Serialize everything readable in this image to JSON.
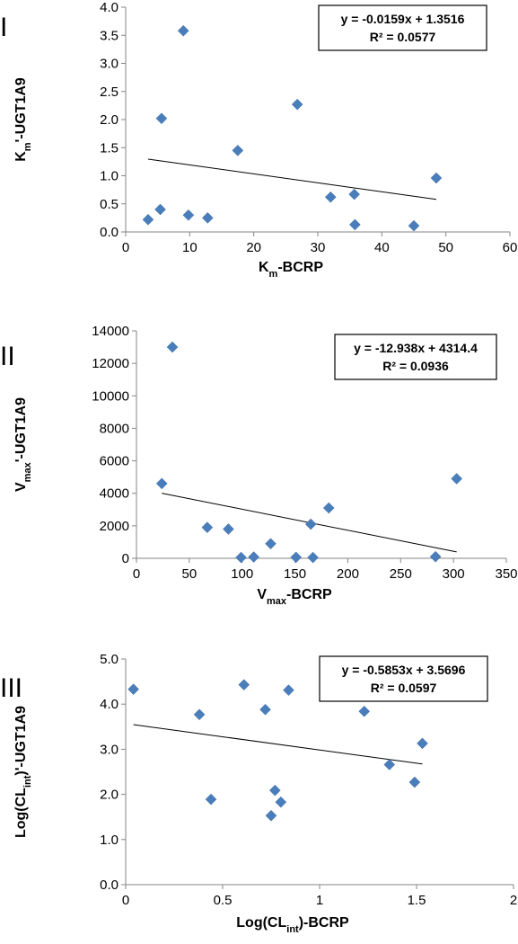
{
  "chart_data": [
    {
      "type": "scatter",
      "panel_label": "I",
      "xlabel": {
        "base": "K",
        "sub": "m",
        "rest": "-BCRP"
      },
      "ylabel": {
        "base": "K",
        "sub": "m",
        "rest": "'-UGT1A9"
      },
      "xlim": [
        0,
        60
      ],
      "ylim": [
        0,
        4.0
      ],
      "xticks": [
        "0",
        "10",
        "20",
        "30",
        "40",
        "50",
        "60"
      ],
      "yticks": [
        "0.0",
        "0.5",
        "1.0",
        "1.5",
        "2.0",
        "2.5",
        "3.0",
        "3.5",
        "4.0"
      ],
      "x": [
        3.5,
        5.4,
        5.6,
        9.0,
        9.8,
        12.8,
        17.5,
        26.8,
        32.0,
        35.7,
        35.8,
        45.0,
        48.5
      ],
      "y": [
        0.22,
        0.4,
        2.02,
        3.58,
        0.3,
        0.25,
        1.45,
        2.27,
        0.62,
        0.67,
        0.13,
        0.11,
        0.96
      ],
      "trendline": {
        "slope": -0.0159,
        "intercept": 1.3516,
        "x_range": [
          3.5,
          48.5
        ]
      },
      "equation": "y = -0.0159x + 1.3516",
      "r2": "R² = 0.0577",
      "marker_color": "#4A7EBB",
      "grid": false
    },
    {
      "type": "scatter",
      "panel_label": "II",
      "xlabel": {
        "base": "V",
        "sub": "max",
        "rest": "-BCRP"
      },
      "ylabel": {
        "base": "V",
        "sub": "max",
        "rest": "'-UGT1A9"
      },
      "xlim": [
        0,
        350
      ],
      "ylim": [
        0,
        14000
      ],
      "xticks": [
        "0",
        "50",
        "100",
        "150",
        "200",
        "250",
        "300",
        "350"
      ],
      "yticks": [
        "0",
        "2000",
        "4000",
        "6000",
        "8000",
        "10000",
        "12000",
        "14000"
      ],
      "x": [
        24,
        34,
        67,
        87,
        99,
        111,
        127,
        151,
        165,
        167,
        182,
        283,
        303
      ],
      "y": [
        4600,
        13000,
        1900,
        1800,
        50,
        80,
        900,
        60,
        2100,
        50,
        3100,
        100,
        4900
      ],
      "trendline": {
        "slope": -12.938,
        "intercept": 4314.4,
        "x_range": [
          24,
          303
        ]
      },
      "equation": "y = -12.938x + 4314.4",
      "r2": "R² = 0.0936",
      "marker_color": "#4A7EBB",
      "grid": false
    },
    {
      "type": "scatter",
      "panel_label": "III",
      "xlabel": {
        "base": "Log(CL",
        "sub": "int",
        "rest": ")-BCRP"
      },
      "ylabel": {
        "base": "Log(CL",
        "sub": "int",
        "rest": ")'-UGT1A9"
      },
      "xlim": [
        0,
        2
      ],
      "ylim": [
        0,
        5.0
      ],
      "xticks": [
        "0",
        "0.5",
        "1",
        "1.5",
        "2"
      ],
      "yticks": [
        "0.0",
        "1.0",
        "2.0",
        "3.0",
        "4.0",
        "5.0"
      ],
      "x": [
        0.04,
        0.38,
        0.44,
        0.61,
        0.72,
        0.75,
        0.77,
        0.8,
        0.84,
        1.23,
        1.36,
        1.49,
        1.53
      ],
      "y": [
        4.33,
        3.77,
        1.89,
        4.43,
        3.88,
        1.53,
        2.09,
        1.83,
        4.31,
        3.84,
        2.66,
        2.27,
        3.13
      ],
      "trendline": {
        "slope": -0.5853,
        "intercept": 3.5696,
        "x_range": [
          0.04,
          1.53
        ]
      },
      "equation": "y = -0.5853x + 3.5696",
      "r2": "R² = 0.0597",
      "marker_color": "#4A7EBB",
      "grid": false
    }
  ]
}
